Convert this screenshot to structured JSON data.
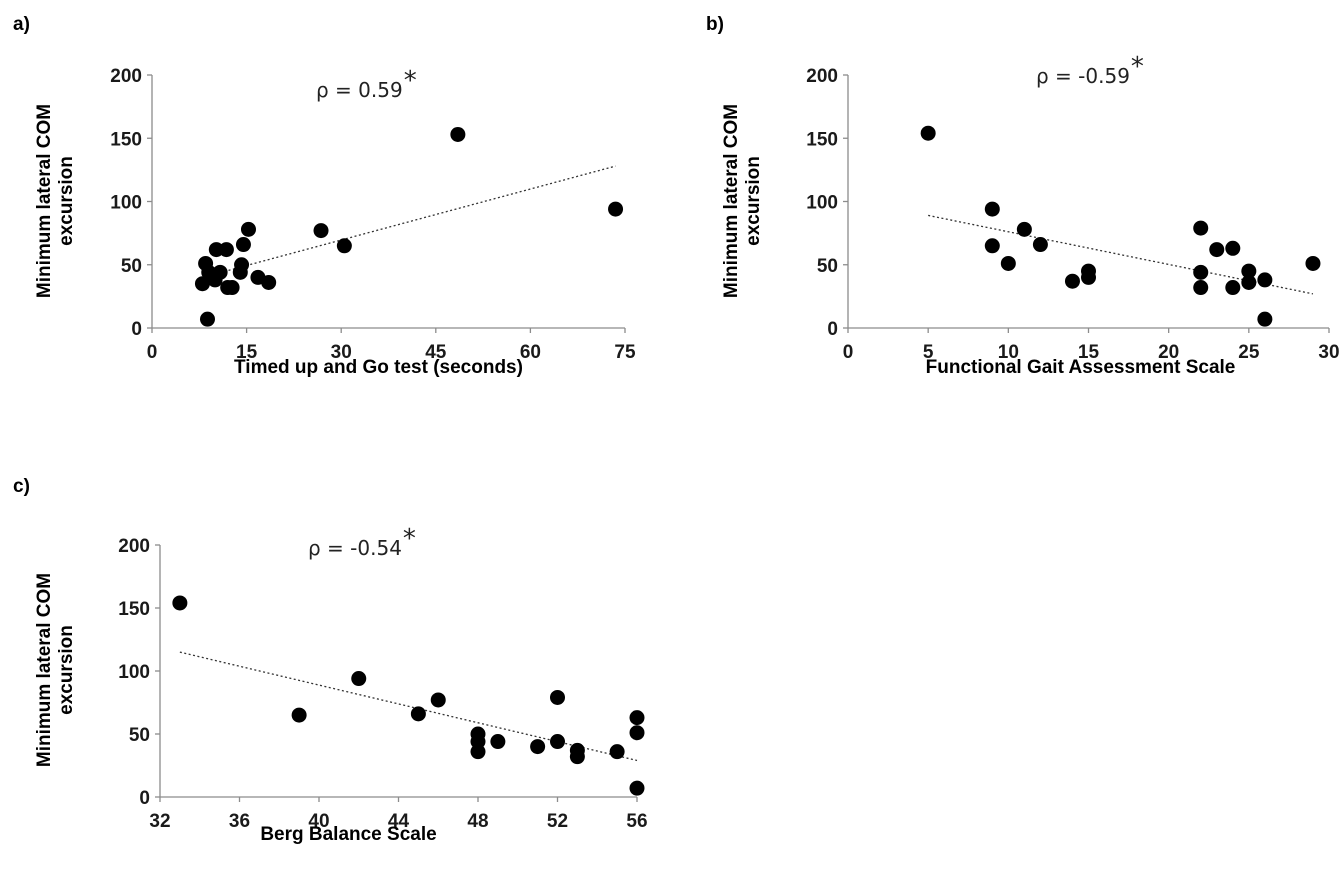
{
  "chart_data": [
    {
      "panel": "a)",
      "type": "scatter",
      "annotation": "ρ = 0.59",
      "annotation_mark": "*",
      "xlabel": "Timed up and Go test (seconds)",
      "ylabel_lines": [
        "Minimum lateral COM",
        "excursion"
      ],
      "xlim": [
        0,
        75
      ],
      "ylim": [
        0,
        200
      ],
      "xticks": [
        0,
        15,
        30,
        45,
        60,
        75
      ],
      "yticks": [
        0,
        50,
        100,
        150,
        200
      ],
      "trendline": {
        "x0": 8,
        "y0": 40,
        "x1": 73.5,
        "y1": 128
      },
      "points": [
        {
          "x": 8,
          "y": 35
        },
        {
          "x": 8.5,
          "y": 51
        },
        {
          "x": 8.8,
          "y": 7
        },
        {
          "x": 9,
          "y": 44
        },
        {
          "x": 9.5,
          "y": 42
        },
        {
          "x": 10,
          "y": 38
        },
        {
          "x": 10.2,
          "y": 62
        },
        {
          "x": 10.8,
          "y": 44
        },
        {
          "x": 11.8,
          "y": 62
        },
        {
          "x": 12,
          "y": 32
        },
        {
          "x": 12.7,
          "y": 32
        },
        {
          "x": 14,
          "y": 44
        },
        {
          "x": 14.2,
          "y": 50
        },
        {
          "x": 14.5,
          "y": 66
        },
        {
          "x": 15.3,
          "y": 78
        },
        {
          "x": 16.8,
          "y": 40
        },
        {
          "x": 18.5,
          "y": 36
        },
        {
          "x": 26.8,
          "y": 77
        },
        {
          "x": 30.5,
          "y": 65
        },
        {
          "x": 48.5,
          "y": 153
        },
        {
          "x": 73.5,
          "y": 94
        }
      ]
    },
    {
      "panel": "b)",
      "type": "scatter",
      "annotation": "ρ = -0.59",
      "annotation_mark": "*",
      "xlabel": "Functional  Gait Assessment  Scale",
      "ylabel_lines": [
        "Minimum  lateral COM",
        "excursion"
      ],
      "xlim": [
        0,
        30
      ],
      "ylim": [
        0,
        200
      ],
      "xticks": [
        0,
        5,
        10,
        15,
        20,
        25,
        30
      ],
      "yticks": [
        0,
        50,
        100,
        150,
        200
      ],
      "trendline": {
        "x0": 5,
        "y0": 89,
        "x1": 29,
        "y1": 27
      },
      "points": [
        {
          "x": 5,
          "y": 154
        },
        {
          "x": 9,
          "y": 94
        },
        {
          "x": 9,
          "y": 65
        },
        {
          "x": 10,
          "y": 51
        },
        {
          "x": 11,
          "y": 78
        },
        {
          "x": 12,
          "y": 66
        },
        {
          "x": 14,
          "y": 37
        },
        {
          "x": 15,
          "y": 45
        },
        {
          "x": 15,
          "y": 40
        },
        {
          "x": 22,
          "y": 79
        },
        {
          "x": 22,
          "y": 44
        },
        {
          "x": 22,
          "y": 32
        },
        {
          "x": 23,
          "y": 62
        },
        {
          "x": 24,
          "y": 63
        },
        {
          "x": 24,
          "y": 32
        },
        {
          "x": 25,
          "y": 45
        },
        {
          "x": 25,
          "y": 36
        },
        {
          "x": 26,
          "y": 38
        },
        {
          "x": 26,
          "y": 7
        },
        {
          "x": 29,
          "y": 51
        }
      ]
    },
    {
      "panel": "c)",
      "type": "scatter",
      "annotation": "ρ = -0.54",
      "annotation_mark": "*",
      "xlabel": "Berg Balance Scale",
      "ylabel_lines": [
        "Minimum lateral COM",
        "excursion"
      ],
      "xlim": [
        32,
        56
      ],
      "ylim": [
        0,
        200
      ],
      "xticks": [
        32,
        36,
        40,
        44,
        48,
        52,
        56
      ],
      "yticks": [
        0,
        50,
        100,
        150,
        200
      ],
      "trendline": {
        "x0": 33,
        "y0": 115,
        "x1": 56,
        "y1": 29
      },
      "points": [
        {
          "x": 33,
          "y": 154
        },
        {
          "x": 39,
          "y": 65
        },
        {
          "x": 42,
          "y": 94
        },
        {
          "x": 45,
          "y": 66
        },
        {
          "x": 46,
          "y": 77
        },
        {
          "x": 48,
          "y": 50
        },
        {
          "x": 48,
          "y": 44
        },
        {
          "x": 48,
          "y": 36
        },
        {
          "x": 49,
          "y": 44
        },
        {
          "x": 51,
          "y": 40
        },
        {
          "x": 52,
          "y": 79
        },
        {
          "x": 52,
          "y": 44
        },
        {
          "x": 53,
          "y": 37
        },
        {
          "x": 53,
          "y": 32
        },
        {
          "x": 55,
          "y": 36
        },
        {
          "x": 56,
          "y": 63
        },
        {
          "x": 56,
          "y": 51
        },
        {
          "x": 56,
          "y": 7
        }
      ]
    }
  ]
}
